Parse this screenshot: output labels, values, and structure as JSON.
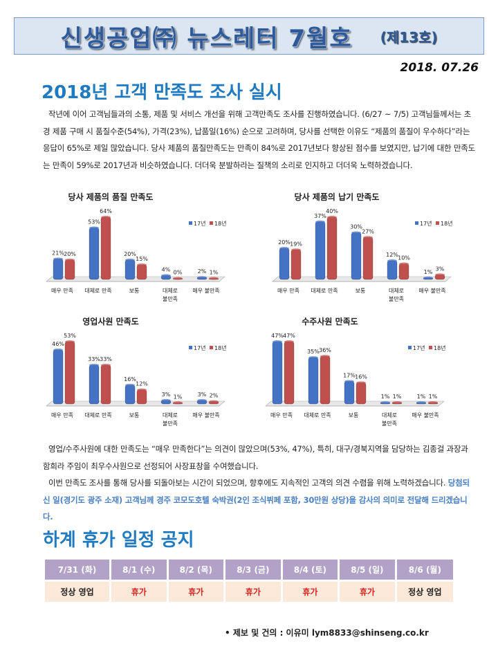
{
  "header": {
    "title": "신생공업㈜ 뉴스레터 7월호",
    "issue": "(제13호)",
    "date": "2018. 07.26"
  },
  "section1": {
    "title": "2018년 고객 만족도 조사 실시",
    "p1": "작년에 이어 고객님들과의 소통, 제품 및 서비스 개선을 위해 고객만족도 조사를 진행하였습니다. (6/27 ~ 7/5) 고객님들께서는 초경 제품 구매 시 품질수준(54%), 가격(23%), 납품일(16%) 순으로 고려하며, 당사를 선택한 이유도 “제품의 품질이 우수하다”라는 응답이 65%로 제일 많았습니다. 당사 제품의 품질만족도는 만족이 84%로 2017년보다 향상된 점수를 보였지만, 납기에 대한 만족도는 만족이 59%로 2017년과 비슷하였습니다. 더더욱 분발하라는 질책의 소리로 인지하고 더더욱 노력하겠습니다.",
    "p2": "영업/수주사원에 대한 만족도는 “매우 만족한다”는 의견이 많았으며(53%, 47%), 특히, 대구/경북지역을 담당하는 김종걸 과장과 함희라 주임이 최우수사원으로 선정되어 사장표창을 수여했습니다.",
    "p3": "이번 만족도 조사를 통해 당사를 되돌아보는 시간이 되었으며, 향후에도 지속적인 고객의 의견 수렴을 위해 노력하겠습니다.",
    "p3_highlight": "당첨되신 일(경기도 광주 소재) 고객님께 경주 코모도호텔 숙박권(2인 조식뷔페 포함, 30만원 상당)을 감사의 의미로 전달해 드리겠습니다."
  },
  "chart_data": [
    {
      "type": "bar",
      "title": "당사 제품의 품질 만족도",
      "categories": [
        "매우 만족",
        "대체로 만족",
        "보통",
        "대체로 불만족",
        "매우 불만족"
      ],
      "series": [
        {
          "name": "17년",
          "values": [
            21,
            53,
            20,
            4,
            2
          ]
        },
        {
          "name": "18년",
          "values": [
            20,
            64,
            15,
            0,
            1
          ]
        }
      ],
      "unit": "%",
      "legend": "right"
    },
    {
      "type": "bar",
      "title": "당사 제품의 납기 만족도",
      "categories": [
        "매우 만족",
        "대체로 만족",
        "보통",
        "대체로 불만족",
        "매우 불만족"
      ],
      "series": [
        {
          "name": "17년",
          "values": [
            20,
            37,
            30,
            12,
            1
          ]
        },
        {
          "name": "18년",
          "values": [
            19,
            40,
            27,
            10,
            3
          ]
        }
      ],
      "unit": "%",
      "legend": "right"
    },
    {
      "type": "bar",
      "title": "영업사원 만족도",
      "categories": [
        "매우 만족",
        "대체로 만족",
        "보통",
        "대체로 불만족",
        "매우 불만족"
      ],
      "series": [
        {
          "name": "17년",
          "values": [
            46,
            33,
            16,
            3,
            3
          ]
        },
        {
          "name": "18년",
          "values": [
            53,
            33,
            12,
            1,
            2
          ]
        }
      ],
      "unit": "%",
      "legend": "right"
    },
    {
      "type": "bar",
      "title": "수주사원 만족도",
      "categories": [
        "매우 만족",
        "대체로 만족",
        "보통",
        "대체로 불만족",
        "매우 불만족"
      ],
      "series": [
        {
          "name": "17년",
          "values": [
            47,
            35,
            17,
            1,
            1
          ]
        },
        {
          "name": "18년",
          "values": [
            47,
            36,
            16,
            1,
            1
          ]
        }
      ],
      "unit": "%",
      "legend": "right"
    }
  ],
  "colors": {
    "s17": "#4472c4",
    "s18": "#c0504d",
    "header": "#b3a2c7",
    "row": "#fde9d9",
    "red": "#e0201b"
  },
  "section2": {
    "title": "하계 휴가 일정 공지",
    "days": [
      "7/31 (화)",
      "8/1 (수)",
      "8/2 (목)",
      "8/3 (금)",
      "8/4 (토)",
      "8/5 (일)",
      "8/6 (월)"
    ],
    "status": [
      "정상 영업",
      "휴가",
      "휴가",
      "휴가",
      "휴가",
      "휴가",
      "정상 영업"
    ]
  },
  "contact": "•  제보 및 건의 : 이유미   lym8833@shinseng.co.kr"
}
